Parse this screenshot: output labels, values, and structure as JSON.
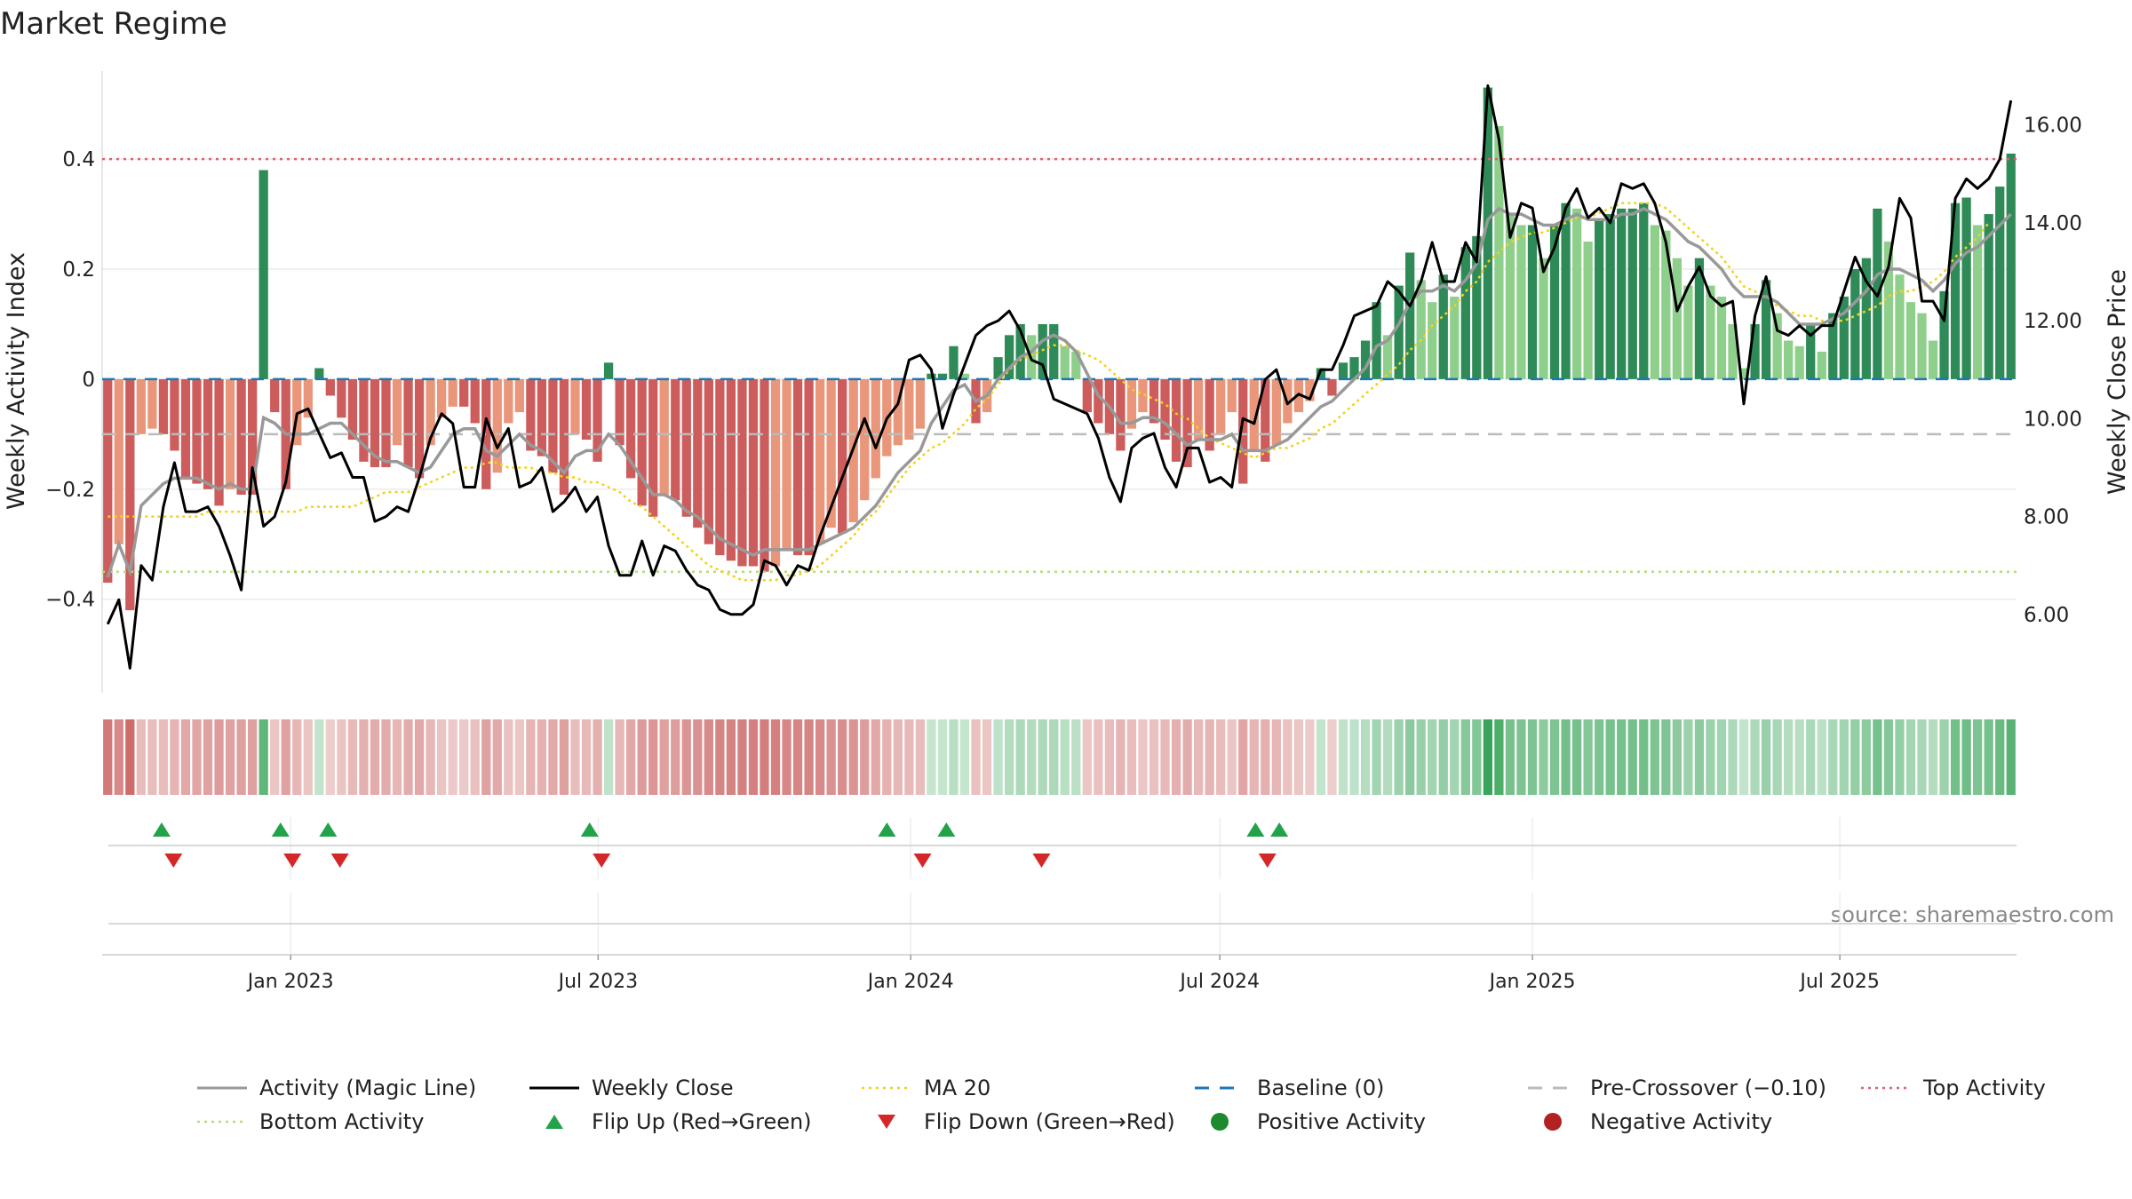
{
  "chart_data": {
    "type": "bar",
    "title": "Market Regime",
    "ylabel_left": "Weekly Activity Index",
    "ylabel_right": "Weekly Close Price",
    "source": "source: sharemaestro.com",
    "x_start": "2022-09-12",
    "x_end": "2025-10-13",
    "x_ticks": [
      "Jan 2023",
      "Jul 2023",
      "Jan 2024",
      "Jul 2024",
      "Jan 2025",
      "Jul 2025"
    ],
    "x_tick_dates": [
      "2023-01-01",
      "2023-07-01",
      "2024-01-01",
      "2024-07-01",
      "2025-01-01",
      "2025-07-01"
    ],
    "ylim_left": [
      -0.57,
      0.56
    ],
    "ylim_right": [
      4.4,
      17.1
    ],
    "y_ticks_left": [
      "0.4",
      "0.2",
      "0",
      "−0.2",
      "−0.4"
    ],
    "y_tick_values_left": [
      0.4,
      0.2,
      0,
      -0.2,
      -0.4
    ],
    "y_ticks_right": [
      "16.00",
      "14.00",
      "12.00",
      "10.00",
      "8.00",
      "6.00"
    ],
    "y_tick_values_right": [
      16,
      14,
      12,
      10,
      8,
      6
    ],
    "thresholds": {
      "top": 0.4,
      "bottom": -0.35,
      "pre_crossover": -0.1,
      "baseline": 0
    },
    "activity": [
      -0.37,
      -0.3,
      -0.42,
      -0.1,
      -0.09,
      -0.1,
      -0.13,
      -0.18,
      -0.19,
      -0.2,
      -0.23,
      -0.2,
      -0.21,
      -0.21,
      0.38,
      -0.06,
      -0.2,
      -0.12,
      -0.07,
      0.02,
      -0.03,
      -0.07,
      -0.11,
      -0.15,
      -0.16,
      -0.16,
      -0.12,
      -0.16,
      -0.18,
      -0.12,
      -0.07,
      -0.05,
      -0.05,
      -0.08,
      -0.2,
      -0.17,
      -0.08,
      -0.06,
      -0.13,
      -0.14,
      -0.17,
      -0.21,
      -0.1,
      -0.11,
      -0.15,
      0.03,
      -0.12,
      -0.18,
      -0.23,
      -0.25,
      -0.21,
      -0.22,
      -0.25,
      -0.27,
      -0.3,
      -0.32,
      -0.33,
      -0.34,
      -0.34,
      -0.35,
      -0.34,
      -0.31,
      -0.32,
      -0.32,
      -0.3,
      -0.27,
      -0.28,
      -0.26,
      -0.22,
      -0.18,
      -0.14,
      -0.12,
      -0.11,
      -0.09,
      0.01,
      0.01,
      0.06,
      0.01,
      -0.08,
      -0.06,
      0.04,
      0.08,
      0.1,
      0.08,
      0.1,
      0.1,
      0.06,
      0.05,
      -0.06,
      -0.08,
      -0.1,
      -0.13,
      -0.09,
      -0.06,
      -0.08,
      -0.11,
      -0.15,
      -0.16,
      -0.11,
      -0.13,
      -0.1,
      -0.06,
      -0.19,
      -0.13,
      -0.15,
      -0.12,
      -0.08,
      -0.06,
      -0.04,
      0.02,
      -0.03,
      0.03,
      0.04,
      0.07,
      0.14,
      0.08,
      0.17,
      0.23,
      0.18,
      0.14,
      0.19,
      0.15,
      0.24,
      0.26,
      0.53,
      0.46,
      0.3,
      0.28,
      0.28,
      0.22,
      0.28,
      0.32,
      0.31,
      0.25,
      0.29,
      0.3,
      0.31,
      0.31,
      0.32,
      0.28,
      0.27,
      0.22,
      0.17,
      0.22,
      0.17,
      0.15,
      0.1,
      0.02,
      0.1,
      0.18,
      0.12,
      0.07,
      0.06,
      0.1,
      0.05,
      0.12,
      0.15,
      0.2,
      0.22,
      0.31,
      0.25,
      0.19,
      0.14,
      0.12,
      0.07,
      0.16,
      0.32,
      0.33,
      0.28,
      0.3,
      0.35,
      0.41
    ],
    "weekly_close": [
      5.8,
      6.3,
      4.9,
      7.0,
      6.7,
      8.2,
      9.1,
      8.1,
      8.1,
      8.2,
      7.8,
      7.2,
      6.5,
      9.0,
      7.8,
      8.0,
      8.7,
      10.1,
      10.2,
      9.7,
      9.2,
      9.3,
      8.8,
      8.8,
      7.9,
      8.0,
      8.2,
      8.1,
      8.8,
      9.6,
      10.1,
      9.9,
      8.6,
      8.6,
      10.0,
      9.4,
      9.8,
      8.6,
      8.7,
      9.0,
      8.1,
      8.3,
      8.6,
      8.1,
      8.4,
      7.4,
      6.8,
      6.8,
      7.5,
      6.8,
      7.4,
      7.3,
      6.9,
      6.6,
      6.5,
      6.1,
      6.0,
      6.0,
      6.2,
      7.1,
      7.0,
      6.6,
      7.0,
      6.9,
      7.6,
      8.2,
      8.8,
      9.4,
      10.0,
      9.4,
      10.0,
      10.3,
      11.2,
      11.3,
      11.0,
      9.8,
      10.5,
      11.1,
      11.7,
      11.9,
      12.0,
      12.2,
      11.8,
      11.2,
      11.1,
      10.4,
      10.3,
      10.2,
      10.1,
      9.6,
      8.8,
      8.3,
      9.4,
      9.6,
      9.7,
      9.0,
      8.6,
      9.4,
      9.4,
      8.7,
      8.8,
      8.6,
      10.0,
      9.9,
      10.8,
      11.0,
      10.3,
      10.5,
      10.4,
      11.0,
      11.0,
      11.5,
      12.1,
      12.2,
      12.3,
      12.8,
      12.6,
      12.3,
      12.8,
      13.6,
      12.8,
      12.8,
      13.6,
      13.2,
      16.8,
      15.7,
      13.7,
      14.4,
      14.3,
      13.0,
      13.5,
      14.3,
      14.7,
      14.1,
      14.3,
      14.0,
      14.8,
      14.7,
      14.8,
      14.4,
      13.6,
      12.2,
      12.7,
      13.1,
      12.5,
      12.3,
      12.4,
      10.3,
      12.1,
      12.9,
      11.8,
      11.7,
      11.9,
      11.7,
      11.9,
      11.9,
      12.6,
      13.3,
      12.8,
      12.5,
      13.1,
      14.5,
      14.1,
      12.4,
      12.4,
      12.0,
      14.5,
      14.9,
      14.7,
      14.9,
      15.3,
      16.5
    ],
    "magic_line": [
      -0.36,
      -0.3,
      -0.35,
      -0.23,
      -0.21,
      -0.19,
      -0.18,
      -0.18,
      -0.18,
      -0.19,
      -0.2,
      -0.19,
      -0.2,
      -0.2,
      -0.07,
      -0.08,
      -0.1,
      -0.1,
      -0.1,
      -0.09,
      -0.08,
      -0.08,
      -0.1,
      -0.12,
      -0.14,
      -0.15,
      -0.15,
      -0.16,
      -0.17,
      -0.16,
      -0.13,
      -0.1,
      -0.09,
      -0.09,
      -0.13,
      -0.14,
      -0.12,
      -0.1,
      -0.12,
      -0.13,
      -0.15,
      -0.17,
      -0.14,
      -0.13,
      -0.13,
      -0.1,
      -0.12,
      -0.15,
      -0.18,
      -0.21,
      -0.21,
      -0.22,
      -0.24,
      -0.25,
      -0.27,
      -0.29,
      -0.3,
      -0.31,
      -0.32,
      -0.31,
      -0.31,
      -0.31,
      -0.31,
      -0.31,
      -0.3,
      -0.29,
      -0.28,
      -0.27,
      -0.25,
      -0.23,
      -0.2,
      -0.17,
      -0.15,
      -0.13,
      -0.08,
      -0.05,
      -0.02,
      -0.01,
      -0.04,
      -0.03,
      0.0,
      0.02,
      0.04,
      0.05,
      0.07,
      0.08,
      0.07,
      0.05,
      0.01,
      -0.03,
      -0.05,
      -0.08,
      -0.08,
      -0.07,
      -0.07,
      -0.08,
      -0.1,
      -0.12,
      -0.11,
      -0.11,
      -0.11,
      -0.1,
      -0.13,
      -0.13,
      -0.13,
      -0.12,
      -0.11,
      -0.09,
      -0.07,
      -0.05,
      -0.04,
      -0.02,
      0.0,
      0.02,
      0.06,
      0.07,
      0.1,
      0.14,
      0.16,
      0.16,
      0.17,
      0.16,
      0.18,
      0.21,
      0.29,
      0.31,
      0.3,
      0.3,
      0.29,
      0.28,
      0.28,
      0.29,
      0.3,
      0.29,
      0.29,
      0.29,
      0.3,
      0.3,
      0.31,
      0.3,
      0.29,
      0.27,
      0.25,
      0.24,
      0.22,
      0.2,
      0.17,
      0.15,
      0.15,
      0.15,
      0.14,
      0.12,
      0.1,
      0.1,
      0.1,
      0.11,
      0.12,
      0.14,
      0.16,
      0.19,
      0.2,
      0.2,
      0.19,
      0.18,
      0.16,
      0.18,
      0.21,
      0.23,
      0.24,
      0.26,
      0.28,
      0.3
    ],
    "ma20": [
      8.0,
      8.0,
      8.0,
      8.0,
      8.0,
      8.0,
      8.0,
      8.0,
      8.0,
      8.1,
      8.1,
      8.1,
      8.1,
      8.1,
      8.1,
      8.1,
      8.1,
      8.1,
      8.2,
      8.2,
      8.2,
      8.2,
      8.2,
      8.3,
      8.4,
      8.5,
      8.5,
      8.5,
      8.6,
      8.7,
      8.8,
      8.9,
      9.0,
      9.0,
      9.1,
      9.1,
      9.0,
      9.0,
      9.0,
      8.9,
      8.9,
      8.8,
      8.8,
      8.7,
      8.7,
      8.6,
      8.5,
      8.3,
      8.2,
      8.0,
      7.8,
      7.6,
      7.4,
      7.2,
      7.0,
      6.9,
      6.8,
      6.7,
      6.7,
      6.7,
      6.7,
      6.8,
      6.8,
      6.9,
      7.0,
      7.2,
      7.4,
      7.6,
      7.9,
      8.1,
      8.4,
      8.7,
      9.0,
      9.2,
      9.4,
      9.5,
      9.7,
      9.9,
      10.2,
      10.4,
      10.7,
      11.0,
      11.2,
      11.3,
      11.4,
      11.5,
      11.5,
      11.4,
      11.3,
      11.2,
      11.0,
      10.8,
      10.6,
      10.5,
      10.4,
      10.3,
      10.1,
      10.0,
      9.8,
      9.6,
      9.5,
      9.4,
      9.3,
      9.2,
      9.3,
      9.4,
      9.4,
      9.5,
      9.6,
      9.8,
      9.9,
      10.1,
      10.3,
      10.5,
      10.7,
      10.9,
      11.1,
      11.4,
      11.6,
      11.9,
      12.1,
      12.3,
      12.6,
      12.8,
      13.2,
      13.4,
      13.6,
      13.7,
      13.8,
      13.8,
      13.9,
      14.0,
      14.1,
      14.1,
      14.2,
      14.3,
      14.4,
      14.4,
      14.4,
      14.4,
      14.3,
      14.1,
      13.9,
      13.7,
      13.5,
      13.3,
      13.0,
      12.7,
      12.6,
      12.5,
      12.3,
      12.2,
      12.1,
      12.1,
      12.0,
      12.0,
      12.0,
      12.1,
      12.2,
      12.3,
      12.5,
      12.6,
      12.6,
      12.7,
      12.8,
      13.0,
      13.3,
      13.5,
      13.7,
      14.0
    ],
    "flip_up_dates": [
      "2022-10-17",
      "2022-12-26",
      "2023-01-23",
      "2023-06-26",
      "2023-12-18",
      "2024-01-22",
      "2024-07-22",
      "2024-08-05"
    ],
    "flip_down_dates": [
      "2022-10-24",
      "2023-01-02",
      "2023-01-30",
      "2023-07-03",
      "2024-01-08",
      "2024-03-18",
      "2024-07-29"
    ],
    "colors": {
      "green_dark": "#2e8b57",
      "green_light": "#8fcf8c",
      "red_dark": "#cd5c5c",
      "red_light": "#e9967a",
      "magic_line": "#999999",
      "weekly_close": "#000000",
      "ma20": "#f2d21b",
      "baseline": "#1f77b4",
      "pre_crossover": "#bbbbbb",
      "top_activity": "#e06070",
      "bottom_activity": "#b5dc7a",
      "flip_up": "#22a34a",
      "flip_down": "#d62728",
      "positive": "#1e8a2e",
      "negative": "#b22222"
    },
    "legend": {
      "position": "bottom",
      "items": [
        {
          "label": "Activity (Magic Line)",
          "kind": "line",
          "color_key": "magic_line"
        },
        {
          "label": "Weekly Close",
          "kind": "line",
          "color_key": "weekly_close"
        },
        {
          "label": "MA 20",
          "kind": "dotted",
          "color_key": "ma20"
        },
        {
          "label": "Baseline (0)",
          "kind": "dashed",
          "color_key": "baseline"
        },
        {
          "label": "Pre-Crossover (−0.10)",
          "kind": "dashed",
          "color_key": "pre_crossover"
        },
        {
          "label": "Top Activity",
          "kind": "dotted",
          "color_key": "top_activity"
        },
        {
          "label": "Bottom Activity",
          "kind": "dotted",
          "color_key": "bottom_activity"
        },
        {
          "label": "Flip Up (Red→Green)",
          "kind": "tri-up",
          "color_key": "flip_up"
        },
        {
          "label": "Flip Down (Green→Red)",
          "kind": "tri-down",
          "color_key": "flip_down"
        },
        {
          "label": "Positive Activity",
          "kind": "dot",
          "color_key": "positive"
        },
        {
          "label": "Negative Activity",
          "kind": "dot",
          "color_key": "negative"
        }
      ]
    }
  }
}
